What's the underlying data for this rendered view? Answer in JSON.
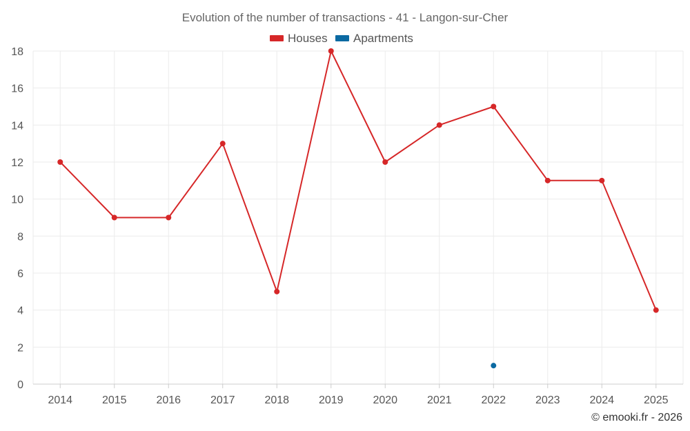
{
  "chart_data": {
    "type": "line",
    "title": "Evolution of the number of transactions - 41 - Langon-sur-Cher",
    "categories": [
      "2014",
      "2015",
      "2016",
      "2017",
      "2018",
      "2019",
      "2020",
      "2021",
      "2022",
      "2023",
      "2024",
      "2025"
    ],
    "series": [
      {
        "name": "Houses",
        "color": "#d62728",
        "values": [
          12,
          9,
          9,
          13,
          5,
          18,
          12,
          14,
          15,
          11,
          11,
          4
        ]
      },
      {
        "name": "Apartments",
        "color": "#0b6aa2",
        "values": [
          null,
          null,
          null,
          null,
          null,
          null,
          null,
          null,
          1,
          null,
          null,
          null
        ]
      }
    ],
    "ylim": [
      0,
      18
    ],
    "yticks": [
      0,
      2,
      4,
      6,
      8,
      10,
      12,
      14,
      16,
      18
    ],
    "xlabel": "",
    "ylabel": "",
    "grid": true,
    "legend_position": "top-center"
  },
  "credit": "© emooki.fr - 2026"
}
